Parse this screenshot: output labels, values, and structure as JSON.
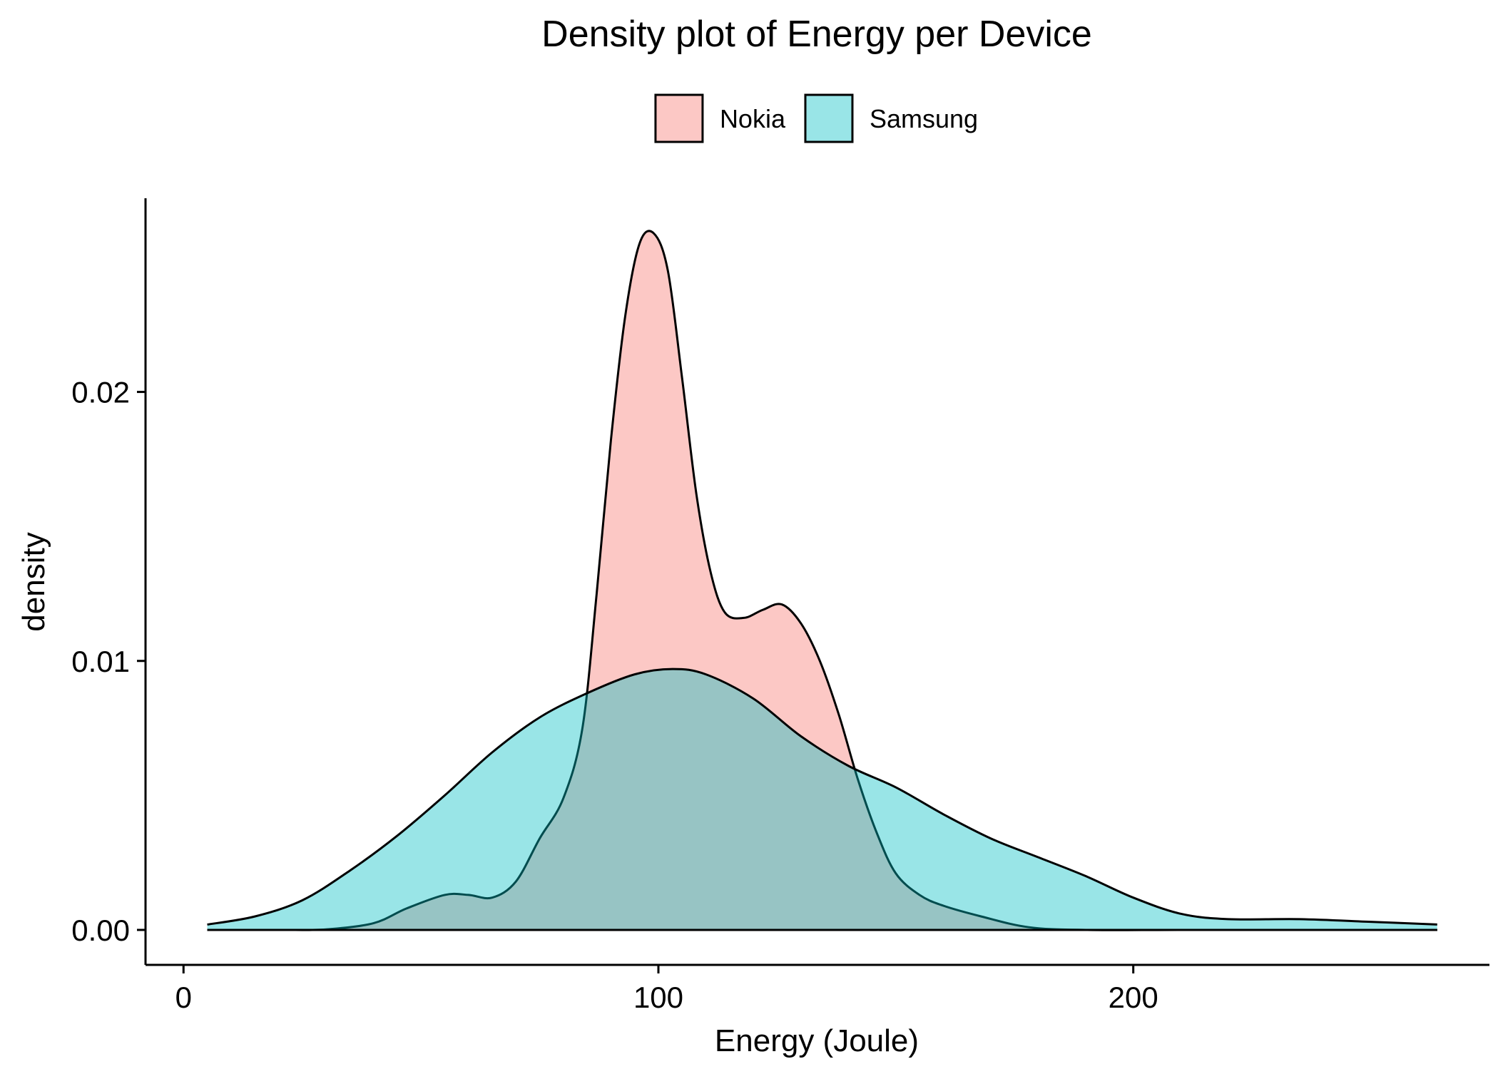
{
  "chart_data": {
    "type": "area",
    "title": "Density plot of Energy per Device",
    "xlabel": "Energy (Joule)",
    "ylabel": "density",
    "xlim": [
      -8,
      275
    ],
    "ylim": [
      -0.0013,
      0.0272
    ],
    "x_ticks": [
      {
        "value": 0,
        "label": "0"
      },
      {
        "value": 100,
        "label": "100"
      },
      {
        "value": 200,
        "label": "200"
      }
    ],
    "y_ticks": [
      {
        "value": 0,
        "label": "0.00"
      },
      {
        "value": 0.01,
        "label": "0.01"
      },
      {
        "value": 0.02,
        "label": "0.02"
      }
    ],
    "grid": false,
    "legend_position": "top",
    "series": [
      {
        "name": "Nokia",
        "fill": "#F8766D",
        "fill_opacity": 0.4,
        "x": [
          5,
          20,
          30,
          40,
          47,
          55,
          60,
          65,
          70,
          75,
          80,
          84,
          87,
          90,
          93,
          96,
          99,
          102,
          105,
          108,
          111,
          114,
          118,
          122,
          126,
          130,
          134,
          138,
          142,
          146,
          150,
          155,
          160,
          168,
          178,
          190,
          210,
          240,
          264
        ],
        "y": [
          0,
          0,
          2e-05,
          0.00025,
          0.0008,
          0.0013,
          0.0013,
          0.0012,
          0.0018,
          0.0034,
          0.0049,
          0.0075,
          0.0125,
          0.0182,
          0.0228,
          0.0255,
          0.0259,
          0.0245,
          0.0205,
          0.0162,
          0.0133,
          0.0118,
          0.0116,
          0.0119,
          0.0121,
          0.0114,
          0.01,
          0.008,
          0.0056,
          0.0036,
          0.0021,
          0.0013,
          0.0009,
          0.0005,
          0.0001,
          0,
          0,
          0,
          0
        ]
      },
      {
        "name": "Samsung",
        "fill": "#00BFC4",
        "fill_opacity": 0.4,
        "x": [
          5,
          15,
          25,
          35,
          45,
          55,
          65,
          75,
          85,
          95,
          103,
          110,
          120,
          130,
          140,
          150,
          160,
          170,
          180,
          190,
          200,
          210,
          220,
          235,
          250,
          264
        ],
        "y": [
          0.0002,
          0.0005,
          0.0011,
          0.0022,
          0.0035,
          0.005,
          0.0066,
          0.0079,
          0.0088,
          0.0095,
          0.0097,
          0.0095,
          0.0086,
          0.0072,
          0.0061,
          0.0053,
          0.0043,
          0.0034,
          0.0027,
          0.002,
          0.0012,
          0.0006,
          0.0004,
          0.0004,
          0.0003,
          0.0002
        ]
      }
    ]
  }
}
